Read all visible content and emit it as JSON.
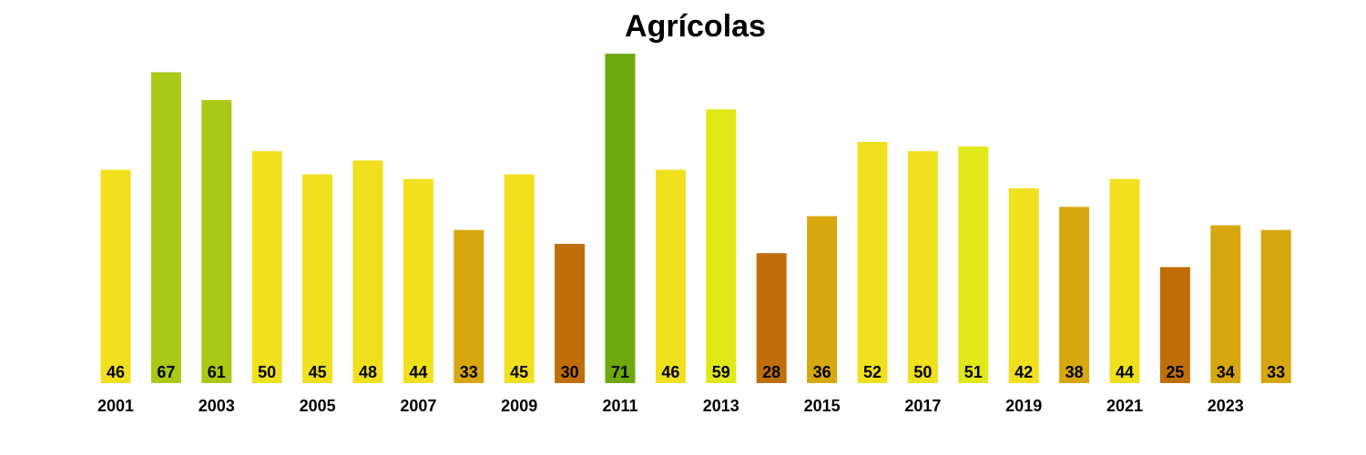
{
  "chart_data": {
    "type": "bar",
    "title": "Agrícolas",
    "xlabel": "",
    "ylabel": "",
    "grid": false,
    "legend": "none",
    "ylim": [
      0,
      71
    ],
    "categories": [
      "2001",
      "2002",
      "2003",
      "2004",
      "2005",
      "2006",
      "2007",
      "2008",
      "2009",
      "2010",
      "2011",
      "2012",
      "2013",
      "2014",
      "2015",
      "2016",
      "2017",
      "2018",
      "2019",
      "2020",
      "2021",
      "2022",
      "2023",
      "2024"
    ],
    "x_tick_labels": [
      "2001",
      "2003",
      "2005",
      "2007",
      "2009",
      "2011",
      "2013",
      "2015",
      "2017",
      "2019",
      "2021",
      "2023"
    ],
    "values": [
      46,
      67,
      61,
      50,
      45,
      48,
      44,
      33,
      45,
      30,
      71,
      46,
      59,
      28,
      36,
      52,
      50,
      51,
      42,
      38,
      44,
      25,
      34,
      33
    ],
    "colors": [
      "#F0E01E",
      "#A9C916",
      "#A9C916",
      "#F0E01E",
      "#F0E01E",
      "#F0E01E",
      "#F0E01E",
      "#D6A70F",
      "#F0E01E",
      "#BF6E0A",
      "#6EA80F",
      "#F0E01E",
      "#E0E81A",
      "#BF6E0A",
      "#D6A70F",
      "#F0E01E",
      "#F0E01E",
      "#E0E81A",
      "#F0E01E",
      "#D6A70F",
      "#F0E01E",
      "#BF6E0A",
      "#D6A70F",
      "#D6A70F"
    ]
  }
}
